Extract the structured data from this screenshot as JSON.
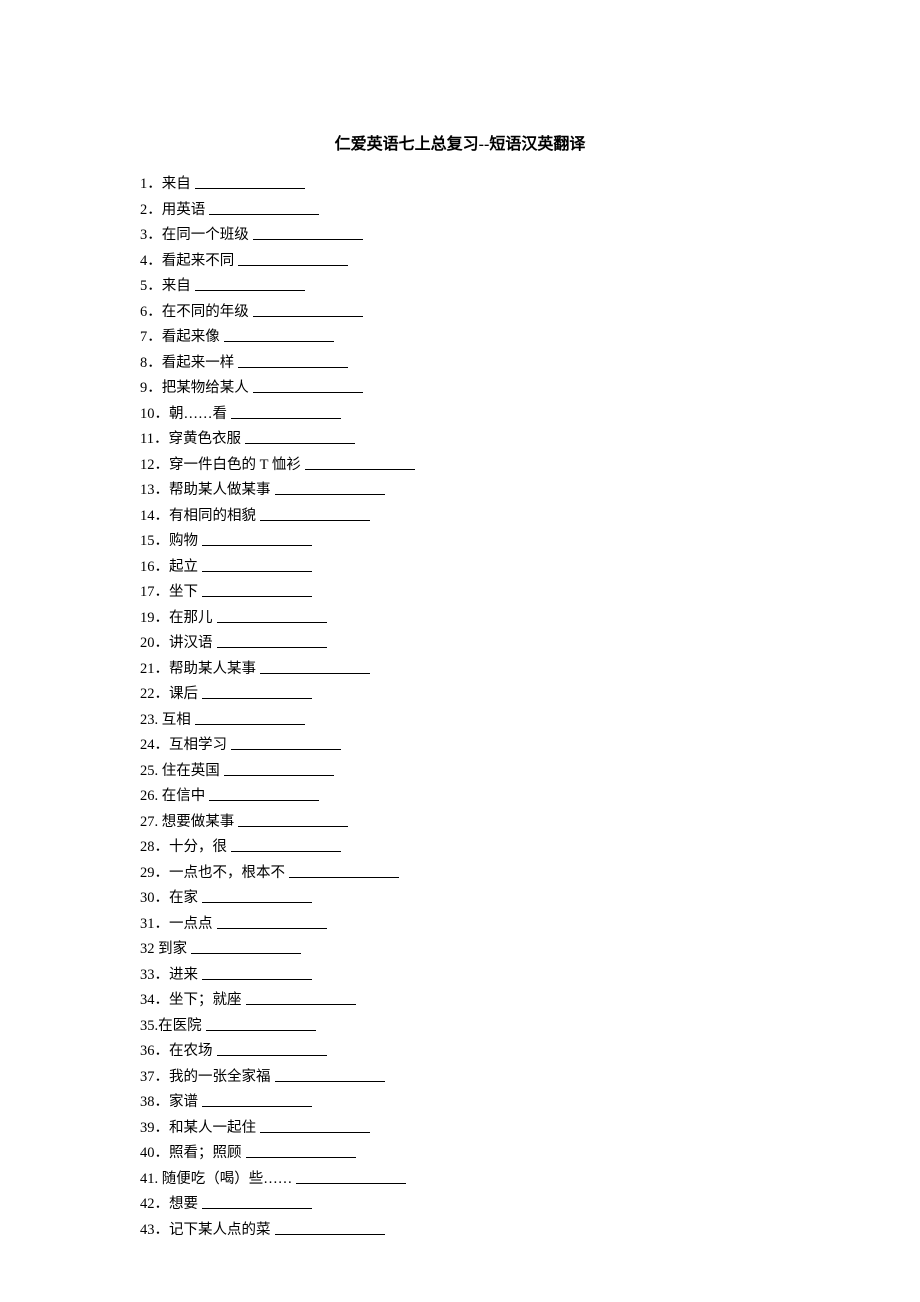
{
  "title": "仁爱英语七上总复习--短语汉英翻译",
  "items": [
    {
      "num": "1．",
      "text": "来自"
    },
    {
      "num": "2．",
      "text": "用英语"
    },
    {
      "num": "3．",
      "text": "在同一个班级"
    },
    {
      "num": "4．",
      "text": "看起来不同"
    },
    {
      "num": "5．",
      "text": "来自"
    },
    {
      "num": "6．",
      "text": "在不同的年级"
    },
    {
      "num": "7．",
      "text": "看起来像"
    },
    {
      "num": "8．",
      "text": "看起来一样"
    },
    {
      "num": "9．",
      "text": "把某物给某人"
    },
    {
      "num": "10．",
      "text": "朝……看"
    },
    {
      "num": "11．",
      "text": "穿黄色衣服"
    },
    {
      "num": "12．",
      "text": "穿一件白色的 T 恤衫"
    },
    {
      "num": "13．",
      "text": "帮助某人做某事"
    },
    {
      "num": "14．",
      "text": "有相同的相貌"
    },
    {
      "num": "15．",
      "text": "购物"
    },
    {
      "num": "16．",
      "text": "起立"
    },
    {
      "num": "17．",
      "text": "坐下"
    },
    {
      "num": "19．",
      "text": "在那儿"
    },
    {
      "num": "20．",
      "text": "讲汉语"
    },
    {
      "num": "21．",
      "text": "帮助某人某事"
    },
    {
      "num": "22．",
      "text": "课后"
    },
    {
      "num": "23. ",
      "text": "互相"
    },
    {
      "num": "24．",
      "text": "互相学习"
    },
    {
      "num": "25. ",
      "text": "住在英国"
    },
    {
      "num": "26. ",
      "text": "在信中"
    },
    {
      "num": "27. ",
      "text": "想要做某事"
    },
    {
      "num": "28．",
      "text": "十分，很"
    },
    {
      "num": "29．",
      "text": "一点也不，根本不"
    },
    {
      "num": "30．",
      "text": "在家"
    },
    {
      "num": "31．",
      "text": "一点点"
    },
    {
      "num": "32 ",
      "text": "到家"
    },
    {
      "num": "33．",
      "text": "进来"
    },
    {
      "num": "34．",
      "text": "坐下；就座"
    },
    {
      "num": "35.",
      "text": "在医院"
    },
    {
      "num": "36．",
      "text": "在农场"
    },
    {
      "num": "37．",
      "text": "我的一张全家福"
    },
    {
      "num": "38．",
      "text": "家谱"
    },
    {
      "num": "39．",
      "text": "和某人一起住"
    },
    {
      "num": "40．",
      "text": "照看；照顾"
    },
    {
      "num": "41. ",
      "text": "随便吃（喝）些……"
    },
    {
      "num": "42．",
      "text": "想要"
    },
    {
      "num": "43．",
      "text": "记下某人点的菜"
    }
  ],
  "styling": {
    "background_color": "#ffffff",
    "text_color": "#000000",
    "title_fontsize": 16,
    "item_fontsize": 14.5,
    "line_height": 25.5,
    "blank_width": 110,
    "font_family": "SimSun"
  }
}
